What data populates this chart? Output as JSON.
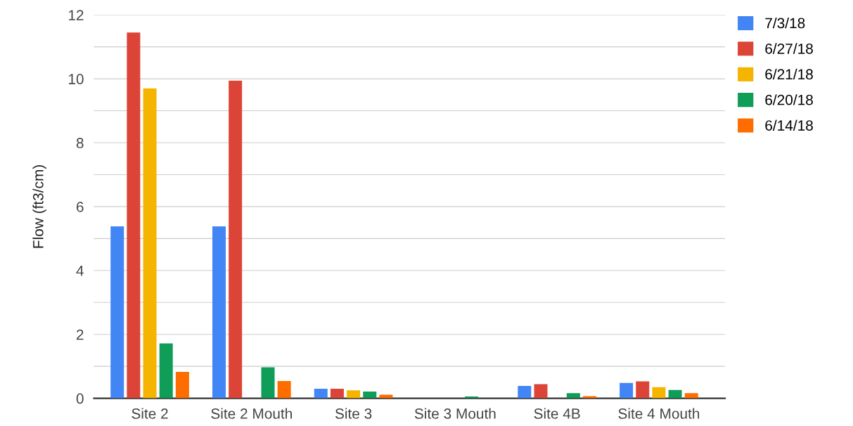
{
  "chart_data": {
    "type": "bar",
    "ylabel": "Flow (ft3/cm)",
    "categories": [
      "Site 2",
      "Site 2 Mouth",
      "Site 3",
      "Site 3 Mouth",
      "Site 4B",
      "Site 4 Mouth"
    ],
    "series": [
      {
        "name": "7/3/18",
        "color": "#4285f4",
        "values": [
          5.38,
          5.38,
          0.3,
          null,
          0.39,
          0.48
        ]
      },
      {
        "name": "6/27/18",
        "color": "#db4437",
        "values": [
          11.45,
          9.94,
          0.3,
          null,
          0.44,
          0.53
        ]
      },
      {
        "name": "6/21/18",
        "color": "#f4b400",
        "values": [
          9.7,
          null,
          0.25,
          null,
          null,
          0.35
        ]
      },
      {
        "name": "6/20/18",
        "color": "#0f9d58",
        "values": [
          1.72,
          0.97,
          0.21,
          0.06,
          0.16,
          0.26
        ]
      },
      {
        "name": "6/14/18",
        "color": "#ff6d00",
        "values": [
          0.83,
          0.54,
          0.11,
          null,
          0.07,
          0.16
        ]
      }
    ],
    "ylim": [
      0,
      12
    ],
    "yticks": [
      0,
      {
        "value": 1,
        "label": null
      },
      2,
      {
        "value": 3,
        "label": null
      },
      4,
      {
        "value": 5,
        "label": null
      },
      6,
      {
        "value": 7,
        "label": null
      },
      8,
      {
        "value": 9,
        "label": null
      },
      10,
      {
        "value": 11,
        "label": null
      },
      12
    ],
    "grid": "y",
    "legend": "right"
  }
}
